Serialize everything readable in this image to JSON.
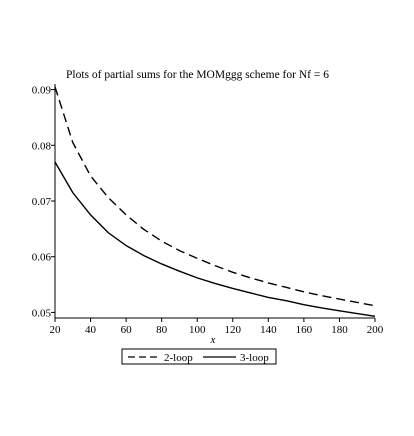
{
  "chart_data": {
    "type": "line",
    "title": "Plots of partial sums for the MOMggg scheme for Nf = 6",
    "xlabel": "x",
    "ylabel": "",
    "xlim": [
      20,
      200
    ],
    "ylim": [
      0.049,
      0.091
    ],
    "x_ticks": [
      20,
      40,
      60,
      80,
      100,
      120,
      140,
      160,
      180,
      200
    ],
    "x_tick_labels": [
      "20",
      "40",
      "60",
      "80",
      "100",
      "120",
      "140",
      "160",
      "180",
      "200"
    ],
    "y_ticks": [
      0.05,
      0.06,
      0.07,
      0.08,
      0.09
    ],
    "y_tick_labels": [
      "0.05",
      "0.06",
      "0.07",
      "0.08",
      "0.09"
    ],
    "grid": false,
    "legend_position": "bottom",
    "x": [
      20,
      30,
      40,
      50,
      60,
      70,
      80,
      90,
      100,
      110,
      120,
      130,
      140,
      150,
      160,
      170,
      180,
      190,
      200
    ],
    "series": [
      {
        "name": "2-loop",
        "style": "dashed",
        "color": "#000000",
        "values": [
          0.0905,
          0.0805,
          0.0745,
          0.0706,
          0.0675,
          0.0649,
          0.0628,
          0.0611,
          0.0597,
          0.0584,
          0.0572,
          0.0562,
          0.0553,
          0.0545,
          0.0537,
          0.053,
          0.0524,
          0.0518,
          0.0512
        ]
      },
      {
        "name": "3-loop",
        "style": "solid",
        "color": "#000000",
        "values": [
          0.077,
          0.0715,
          0.0675,
          0.0643,
          0.062,
          0.0602,
          0.0587,
          0.0574,
          0.0562,
          0.0552,
          0.0543,
          0.0535,
          0.0527,
          0.0521,
          0.0514,
          0.0508,
          0.0503,
          0.0498,
          0.0493
        ]
      }
    ]
  }
}
